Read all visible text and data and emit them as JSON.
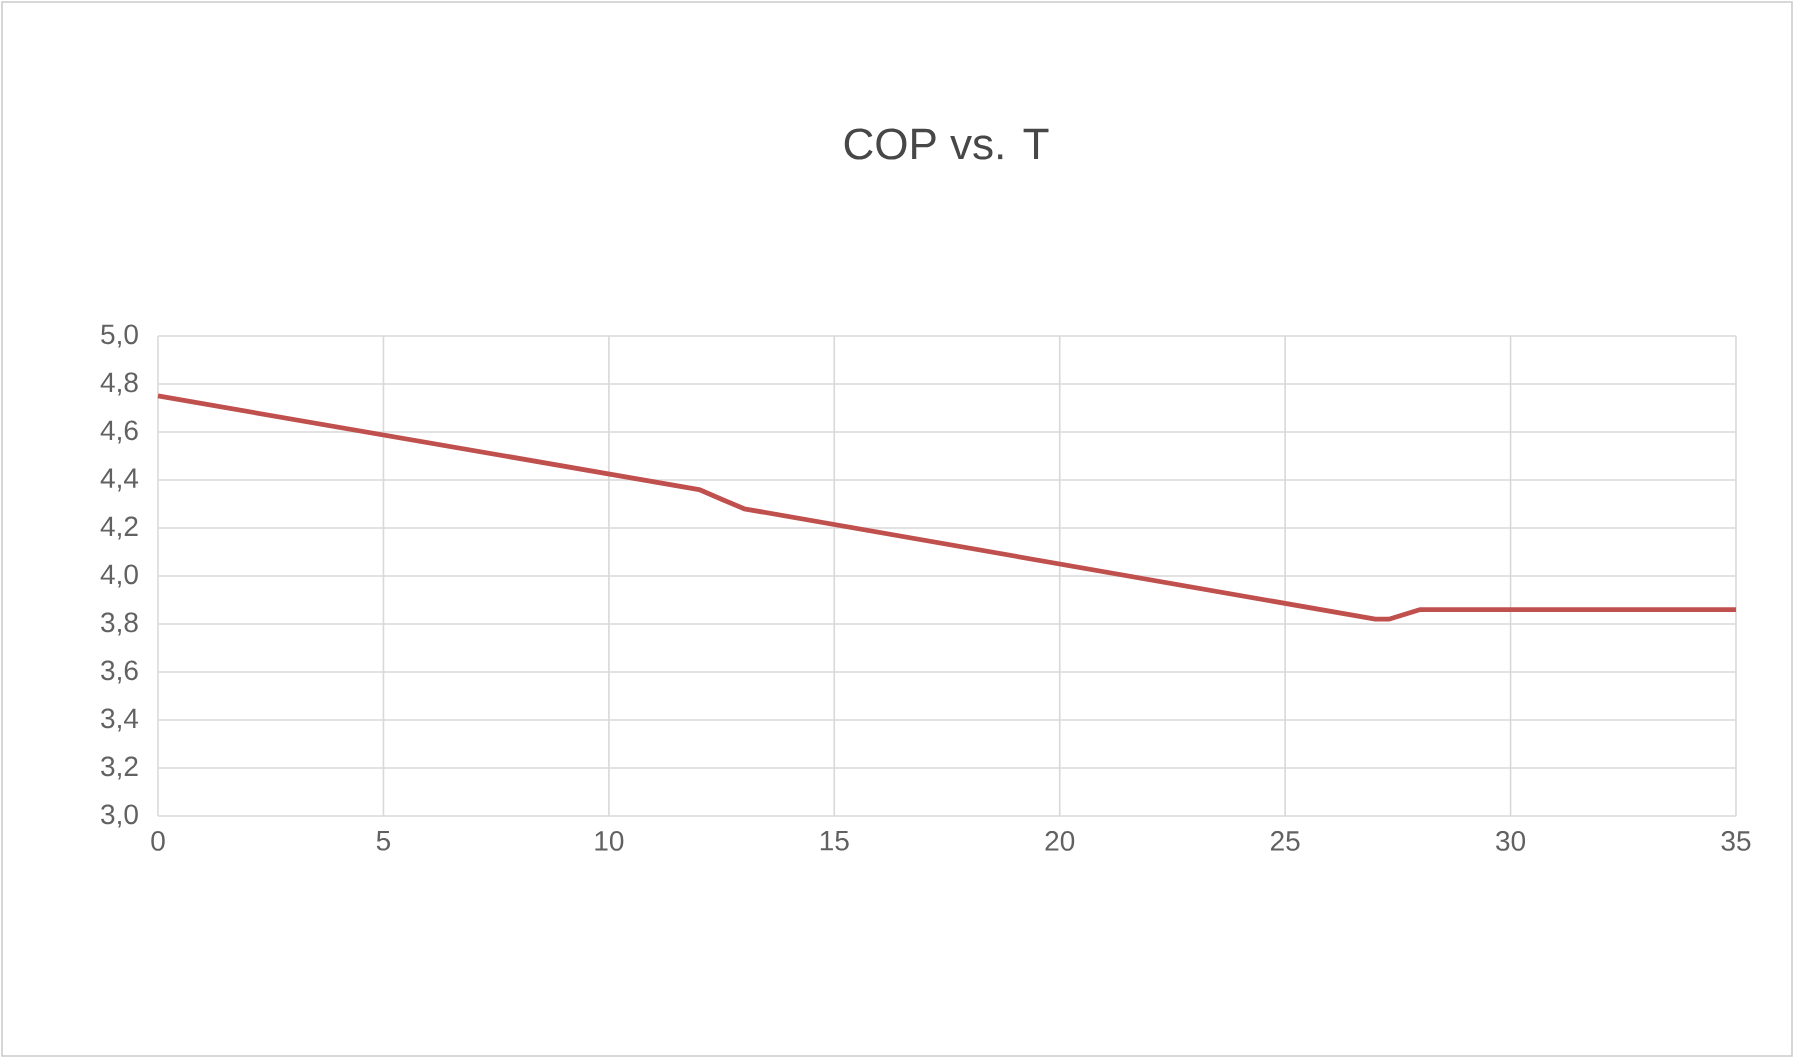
{
  "chart_data": {
    "type": "line",
    "title": "COP vs. T",
    "x": [
      0,
      12,
      12.5,
      13,
      27,
      27.3,
      28,
      35
    ],
    "series": [
      {
        "color": "#c0504d",
        "values": [
          4.75,
          4.36,
          4.32,
          4.28,
          3.82,
          3.82,
          3.86,
          3.86
        ]
      }
    ],
    "xlim": [
      0,
      35
    ],
    "xticks": [
      0,
      5,
      10,
      15,
      20,
      25,
      30,
      35
    ],
    "ylim": [
      3.0,
      5.0
    ],
    "yticks": [
      {
        "value": 3.0,
        "label": "3,0"
      },
      {
        "value": 3.2,
        "label": "3,2"
      },
      {
        "value": 3.4,
        "label": "3,4"
      },
      {
        "value": 3.6,
        "label": "3,6"
      },
      {
        "value": 3.8,
        "label": "3,8"
      },
      {
        "value": 4.0,
        "label": "4,0"
      },
      {
        "value": 4.2,
        "label": "4,2"
      },
      {
        "value": 4.4,
        "label": "4,4"
      },
      {
        "value": 4.6,
        "label": "4,6"
      },
      {
        "value": 4.8,
        "label": "4,8"
      },
      {
        "value": 5.0,
        "label": "5,0"
      }
    ],
    "grid": true,
    "marker": "none",
    "line_style": "solid"
  }
}
